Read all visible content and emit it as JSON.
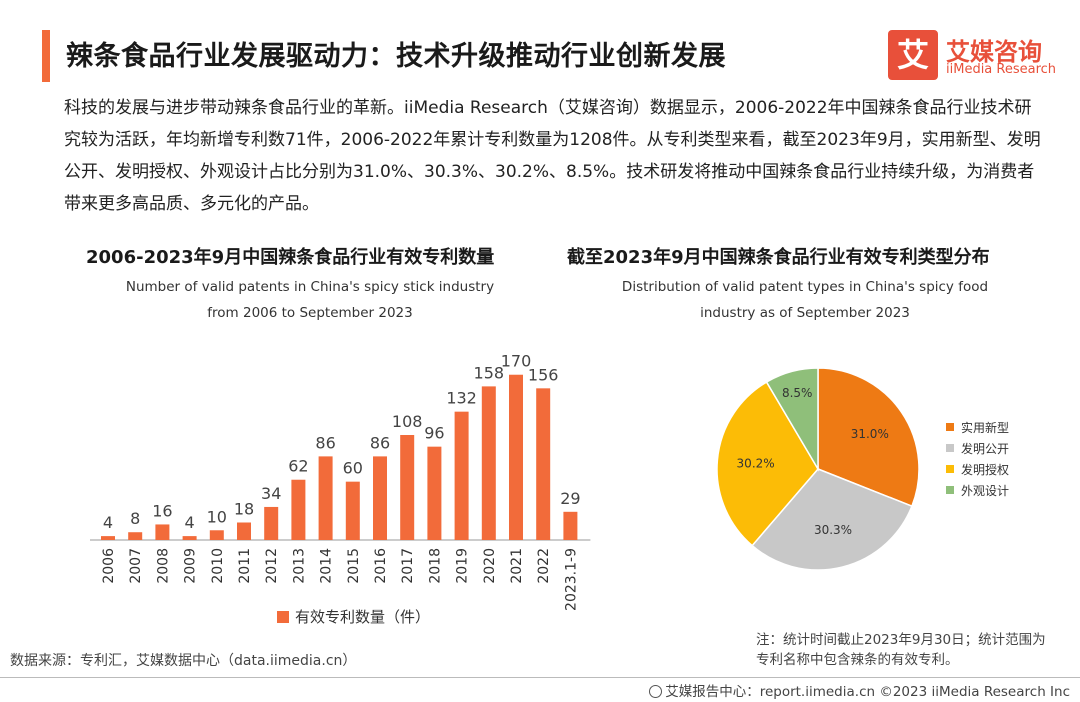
{
  "header": {
    "title": "辣条食品行业发展驱动力：技术升级推动行业创新发展"
  },
  "brand": {
    "logo_char": "艾",
    "name_cn": "艾媒咨询",
    "name_en": "iiMedia Research"
  },
  "intro": "科技的发展与进步带动辣条食品行业的革新。iiMedia Research（艾媒咨询）数据显示，2006-2022年中国辣条食品行业技术研究较为活跃，年均新增专利数71件，2006-2022年累计专利数量为1208件。从专利类型来看，截至2023年9月，实用新型、发明公开、发明授权、外观设计占比分别为31.0%、30.3%、30.2%、8.5%。技术研发将推动中国辣条食品行业持续升级，为消费者带来更多高品质、多元化的产品。",
  "colors": {
    "accent": "#f26b3a",
    "pie": [
      "#ee7a14",
      "#c8c8c8",
      "#fcbc06",
      "#8fbf7a"
    ]
  },
  "chart_data": [
    {
      "type": "bar",
      "title": "2006-2023年9月中国辣条食品行业有效专利数量",
      "subtitle_line1": "Number of valid patents in China's spicy stick industry",
      "subtitle_line2": "from 2006 to September 2023",
      "categories": [
        "2006",
        "2007",
        "2008",
        "2009",
        "2010",
        "2011",
        "2012",
        "2013",
        "2014",
        "2015",
        "2016",
        "2017",
        "2018",
        "2019",
        "2020",
        "2021",
        "2022",
        "2023.1-9"
      ],
      "series": [
        {
          "name": "有效专利数量（件）",
          "values": [
            4,
            8,
            16,
            4,
            10,
            18,
            34,
            62,
            86,
            60,
            86,
            108,
            96,
            132,
            158,
            170,
            156,
            29
          ]
        }
      ],
      "ylim": [
        0,
        180
      ],
      "legend": "bottom"
    },
    {
      "type": "pie",
      "title": "截至2023年9月中国辣条食品行业有效专利类型分布",
      "subtitle_line1": "Distribution of valid patent types in China's spicy food",
      "subtitle_line2": "industry as of September 2023",
      "labels": [
        "实用新型",
        "发明公开",
        "发明授权",
        "外观设计"
      ],
      "values": [
        31.0,
        30.3,
        30.2,
        8.5
      ],
      "value_labels": [
        "31.0%",
        "30.3%",
        "30.2%",
        "8.5%"
      ],
      "legend": "right"
    }
  ],
  "source": "数据来源：专利汇，艾媒数据中心（data.iimedia.cn）",
  "note": "注：统计时间截止2023年9月30日；统计范围为专利名称中包含辣条的有效专利。",
  "footer": "艾媒报告中心：report.iimedia.cn  ©2023  iiMedia Research  Inc"
}
